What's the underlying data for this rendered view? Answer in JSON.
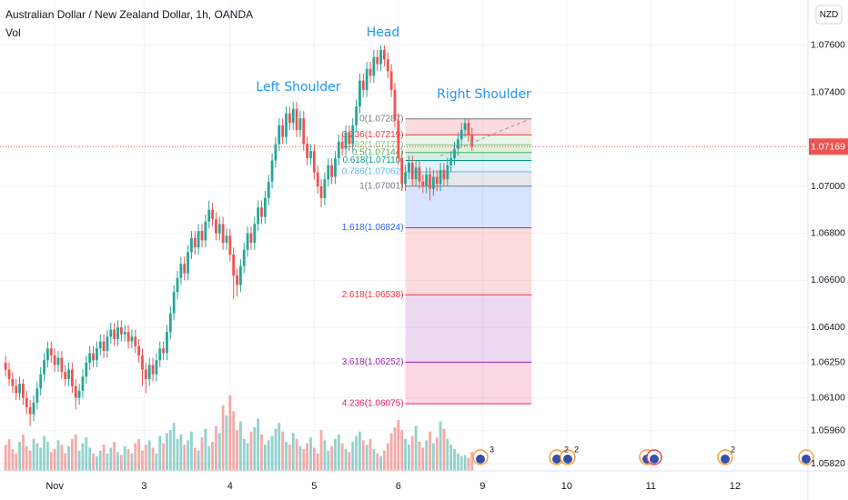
{
  "chart_data": {
    "type": "candlestick",
    "title": "Australian Dollar / New Zealand Dollar, 1h, OANDA",
    "volume_label": "Vol",
    "currency": "NZD",
    "up_color": "#26a69a",
    "down_color": "#ef5350",
    "grid": true,
    "xlim": [
      -15.6,
      214.8
    ],
    "ylim": [
      1.05789,
      1.07793
    ],
    "vlim": [
      0,
      100
    ],
    "xticks": [
      {
        "value": 0,
        "label": "Nov"
      },
      {
        "value": 25.5,
        "label": "3"
      },
      {
        "value": 50,
        "label": "4"
      },
      {
        "value": 74,
        "label": "5"
      },
      {
        "value": 98,
        "label": "6"
      },
      {
        "value": 122,
        "label": "9"
      },
      {
        "value": 146,
        "label": "10"
      },
      {
        "value": 170,
        "label": "11"
      },
      {
        "value": 194,
        "label": "12"
      }
    ],
    "yticks": [
      {
        "value": 1.076,
        "label": "1.07600"
      },
      {
        "value": 1.074,
        "label": "1.07400"
      },
      {
        "value": 1.07,
        "label": "1.07000"
      },
      {
        "value": 1.068,
        "label": "1.06800"
      },
      {
        "value": 1.066,
        "label": "1.06600"
      },
      {
        "value": 1.064,
        "label": "1.06400"
      },
      {
        "value": 1.0625,
        "label": "1.06250"
      },
      {
        "value": 1.061,
        "label": "1.06100"
      },
      {
        "value": 1.0596,
        "label": "1.05960"
      },
      {
        "value": 1.0582,
        "label": "1.05820"
      }
    ],
    "last_price": 1.07169,
    "x": [
      -14,
      -13,
      -12,
      -11,
      -10,
      -9,
      -8,
      -7,
      -6,
      -5,
      -4,
      -3,
      -2,
      -1,
      0,
      1,
      2,
      3,
      4,
      5,
      6,
      7,
      8,
      9,
      10,
      11,
      12,
      13,
      14,
      15,
      16,
      17,
      18,
      19,
      20,
      21,
      22,
      23,
      24,
      25,
      26,
      27,
      28,
      29,
      30,
      31,
      32,
      33,
      34,
      35,
      36,
      37,
      38,
      39,
      40,
      41,
      42,
      43,
      44,
      45,
      46,
      47,
      48,
      49,
      50,
      51,
      52,
      53,
      54,
      55,
      56,
      57,
      58,
      59,
      60,
      61,
      62,
      63,
      64,
      65,
      66,
      67,
      68,
      69,
      70,
      71,
      72,
      73,
      74,
      75,
      76,
      77,
      78,
      79,
      80,
      81,
      82,
      83,
      84,
      85,
      86,
      87,
      88,
      89,
      90,
      91,
      92,
      93,
      94,
      95,
      96,
      97,
      98,
      99,
      100,
      101,
      102,
      103,
      104,
      105,
      106,
      107,
      108,
      109,
      110,
      111,
      112,
      113,
      114,
      115,
      116,
      117,
      118,
      119
    ],
    "ohlc": [
      [
        1.0625,
        1.0628,
        1.0619,
        1.0622
      ],
      [
        1.0622,
        1.0625,
        1.0615,
        1.0618
      ],
      [
        1.0618,
        1.0621,
        1.0612,
        1.0615
      ],
      [
        1.0615,
        1.0618,
        1.0609,
        1.0612
      ],
      [
        1.0612,
        1.0619,
        1.0609,
        1.0616
      ],
      [
        1.0616,
        1.0618,
        1.0607,
        1.061
      ],
      [
        1.061,
        1.0613,
        1.0603,
        1.0606
      ],
      [
        1.0606,
        1.0609,
        1.0598,
        1.0603
      ],
      [
        1.0603,
        1.0611,
        1.06,
        1.0608
      ],
      [
        1.0608,
        1.0617,
        1.0605,
        1.0614
      ],
      [
        1.0614,
        1.0623,
        1.0611,
        1.062
      ],
      [
        1.062,
        1.0629,
        1.0617,
        1.0626
      ],
      [
        1.0626,
        1.0634,
        1.0623,
        1.0631
      ],
      [
        1.0631,
        1.0634,
        1.0625,
        1.0628
      ],
      [
        1.0628,
        1.0631,
        1.0621,
        1.0624
      ],
      [
        1.0624,
        1.063,
        1.0621,
        1.0627
      ],
      [
        1.0627,
        1.063,
        1.0618,
        1.0621
      ],
      [
        1.0621,
        1.0624,
        1.0615,
        1.0618
      ],
      [
        1.0618,
        1.0625,
        1.0615,
        1.0622
      ],
      [
        1.0622,
        1.0625,
        1.0612,
        1.0615
      ],
      [
        1.0615,
        1.0618,
        1.0605,
        1.061
      ],
      [
        1.061,
        1.0616,
        1.0607,
        1.0613
      ],
      [
        1.0613,
        1.0622,
        1.061,
        1.0619
      ],
      [
        1.0619,
        1.0628,
        1.0616,
        1.0625
      ],
      [
        1.0625,
        1.0632,
        1.0622,
        1.0629
      ],
      [
        1.0629,
        1.0632,
        1.0623,
        1.0626
      ],
      [
        1.0626,
        1.0634,
        1.0623,
        1.0631
      ],
      [
        1.0631,
        1.0637,
        1.0628,
        1.0634
      ],
      [
        1.0634,
        1.0637,
        1.0627,
        1.063
      ],
      [
        1.063,
        1.0639,
        1.0627,
        1.0636
      ],
      [
        1.0636,
        1.0642,
        1.0633,
        1.0639
      ],
      [
        1.0639,
        1.0642,
        1.0632,
        1.0635
      ],
      [
        1.0635,
        1.0643,
        1.0632,
        1.064
      ],
      [
        1.064,
        1.0643,
        1.0634,
        1.0637
      ],
      [
        1.0637,
        1.0641,
        1.0634,
        1.0638
      ],
      [
        1.0638,
        1.0641,
        1.0631,
        1.0634
      ],
      [
        1.0634,
        1.0639,
        1.0631,
        1.0636
      ],
      [
        1.0636,
        1.0639,
        1.0629,
        1.0632
      ],
      [
        1.0632,
        1.0635,
        1.0625,
        1.0628
      ],
      [
        1.0628,
        1.0631,
        1.0615,
        1.0622
      ],
      [
        1.0622,
        1.0625,
        1.0612,
        1.0618
      ],
      [
        1.0618,
        1.0627,
        1.0615,
        1.0624
      ],
      [
        1.0624,
        1.0627,
        1.0617,
        1.062
      ],
      [
        1.062,
        1.0629,
        1.0617,
        1.0626
      ],
      [
        1.0626,
        1.0634,
        1.0623,
        1.0631
      ],
      [
        1.0631,
        1.0634,
        1.0626,
        1.0629
      ],
      [
        1.0629,
        1.0641,
        1.0626,
        1.0638
      ],
      [
        1.0638,
        1.0649,
        1.0635,
        1.0646
      ],
      [
        1.0646,
        1.0658,
        1.0643,
        1.0655
      ],
      [
        1.0655,
        1.0664,
        1.0652,
        1.0661
      ],
      [
        1.0661,
        1.067,
        1.0658,
        1.0667
      ],
      [
        1.0667,
        1.067,
        1.066,
        1.0663
      ],
      [
        1.0663,
        1.0675,
        1.066,
        1.0672
      ],
      [
        1.0672,
        1.0681,
        1.0669,
        1.0678
      ],
      [
        1.0678,
        1.0681,
        1.0671,
        1.0674
      ],
      [
        1.0674,
        1.0684,
        1.0671,
        1.0681
      ],
      [
        1.0681,
        1.0684,
        1.0674,
        1.0677
      ],
      [
        1.0677,
        1.0688,
        1.0674,
        1.0685
      ],
      [
        1.0685,
        1.0694,
        1.0682,
        1.069
      ],
      [
        1.069,
        1.0693,
        1.0683,
        1.0686
      ],
      [
        1.0686,
        1.0689,
        1.0677,
        1.068
      ],
      [
        1.068,
        1.0687,
        1.0677,
        1.0684
      ],
      [
        1.0684,
        1.0687,
        1.0673,
        1.0676
      ],
      [
        1.0676,
        1.0682,
        1.0673,
        1.0679
      ],
      [
        1.0679,
        1.0682,
        1.0668,
        1.0671
      ],
      [
        1.0671,
        1.0674,
        1.0652,
        1.0662
      ],
      [
        1.0662,
        1.0665,
        1.0653,
        1.0658
      ],
      [
        1.0658,
        1.0669,
        1.0655,
        1.0666
      ],
      [
        1.0666,
        1.0676,
        1.0663,
        1.0673
      ],
      [
        1.0673,
        1.0683,
        1.067,
        1.068
      ],
      [
        1.068,
        1.0683,
        1.0673,
        1.0676
      ],
      [
        1.0676,
        1.0687,
        1.0673,
        1.0684
      ],
      [
        1.0684,
        1.0694,
        1.0681,
        1.0691
      ],
      [
        1.0691,
        1.0694,
        1.0684,
        1.0687
      ],
      [
        1.0687,
        1.0698,
        1.0684,
        1.0695
      ],
      [
        1.0695,
        1.0705,
        1.0692,
        1.0702
      ],
      [
        1.0702,
        1.0714,
        1.0699,
        1.0711
      ],
      [
        1.0711,
        1.0721,
        1.0708,
        1.0718
      ],
      [
        1.0718,
        1.0729,
        1.0715,
        1.0726
      ],
      [
        1.0726,
        1.0729,
        1.0718,
        1.0721
      ],
      [
        1.0721,
        1.0734,
        1.0718,
        1.0731
      ],
      [
        1.0731,
        1.0734,
        1.0724,
        1.0727
      ],
      [
        1.0727,
        1.0736,
        1.0724,
        1.0733
      ],
      [
        1.0733,
        1.0736,
        1.0721,
        1.0724
      ],
      [
        1.0724,
        1.0732,
        1.0721,
        1.0729
      ],
      [
        1.0729,
        1.0732,
        1.0715,
        1.0718
      ],
      [
        1.0718,
        1.0721,
        1.0709,
        1.0712
      ],
      [
        1.0712,
        1.0718,
        1.0709,
        1.0715
      ],
      [
        1.0715,
        1.0718,
        1.0703,
        1.0706
      ],
      [
        1.0706,
        1.0709,
        1.0697,
        1.07
      ],
      [
        1.07,
        1.0703,
        1.0691,
        1.0695
      ],
      [
        1.0695,
        1.0706,
        1.0692,
        1.0703
      ],
      [
        1.0703,
        1.0712,
        1.07,
        1.0709
      ],
      [
        1.0709,
        1.0712,
        1.0701,
        1.0704
      ],
      [
        1.0704,
        1.0715,
        1.0701,
        1.0712
      ],
      [
        1.0712,
        1.0722,
        1.0709,
        1.0719
      ],
      [
        1.0719,
        1.0722,
        1.0713,
        1.0716
      ],
      [
        1.0716,
        1.0726,
        1.0713,
        1.0723
      ],
      [
        1.0723,
        1.0726,
        1.0715,
        1.0718
      ],
      [
        1.0718,
        1.0729,
        1.0715,
        1.0726
      ],
      [
        1.0726,
        1.0737,
        1.0723,
        1.0734
      ],
      [
        1.0734,
        1.0748,
        1.0731,
        1.0745
      ],
      [
        1.0745,
        1.0748,
        1.0738,
        1.0741
      ],
      [
        1.0741,
        1.0753,
        1.0738,
        1.075
      ],
      [
        1.075,
        1.0753,
        1.0744,
        1.0747
      ],
      [
        1.0747,
        1.0758,
        1.0744,
        1.0755
      ],
      [
        1.0755,
        1.0758,
        1.0749,
        1.0752
      ],
      [
        1.0752,
        1.076,
        1.0749,
        1.0758
      ],
      [
        1.0758,
        1.076,
        1.0751,
        1.0754
      ],
      [
        1.0754,
        1.0757,
        1.0746,
        1.0749
      ],
      [
        1.0749,
        1.0752,
        1.0738,
        1.0741
      ],
      [
        1.0741,
        1.0744,
        1.0725,
        1.0728
      ],
      [
        1.0728,
        1.0731,
        1.0709,
        1.0712
      ],
      [
        1.0712,
        1.0715,
        1.0698,
        1.0701
      ],
      [
        1.0701,
        1.0709,
        1.0698,
        1.0706
      ],
      [
        1.0706,
        1.0713,
        1.0703,
        1.071
      ],
      [
        1.071,
        1.0713,
        1.07,
        1.0703
      ],
      [
        1.0703,
        1.0711,
        1.07,
        1.0708
      ],
      [
        1.0708,
        1.0711,
        1.0699,
        1.0702
      ],
      [
        1.0702,
        1.0705,
        1.0697,
        1.07
      ],
      [
        1.07,
        1.0708,
        1.0697,
        1.0705
      ],
      [
        1.0705,
        1.0708,
        1.0694,
        1.0699
      ],
      [
        1.0699,
        1.0707,
        1.0696,
        1.0704
      ],
      [
        1.0704,
        1.0707,
        1.0698,
        1.0701
      ],
      [
        1.0701,
        1.071,
        1.0698,
        1.0707
      ],
      [
        1.0707,
        1.071,
        1.07,
        1.0703
      ],
      [
        1.0703,
        1.0712,
        1.07,
        1.0709
      ],
      [
        1.0709,
        1.0715,
        1.0706,
        1.0712
      ],
      [
        1.0712,
        1.0719,
        1.0709,
        1.0716
      ],
      [
        1.0716,
        1.0723,
        1.0713,
        1.072
      ],
      [
        1.072,
        1.0727,
        1.0717,
        1.0724
      ],
      [
        1.0724,
        1.0729,
        1.0721,
        1.0727
      ],
      [
        1.0727,
        1.0729,
        1.0719,
        1.0722
      ],
      [
        1.0722,
        1.0725,
        1.0715,
        1.07169
      ]
    ],
    "volume": [
      18,
      22,
      15,
      12,
      20,
      25,
      17,
      14,
      22,
      19,
      16,
      24,
      20,
      13,
      15,
      21,
      18,
      12,
      17,
      22,
      25,
      14,
      19,
      23,
      16,
      12,
      10,
      14,
      18,
      12,
      16,
      20,
      13,
      11,
      17,
      15,
      12,
      19,
      22,
      14,
      18,
      21,
      16,
      12,
      24,
      19,
      26,
      28,
      33,
      22,
      25,
      18,
      21,
      27,
      16,
      14,
      23,
      29,
      17,
      20,
      31,
      26,
      45,
      38,
      52,
      41,
      28,
      34,
      22,
      19,
      27,
      30,
      36,
      25,
      18,
      21,
      24,
      29,
      33,
      27,
      20,
      18,
      26,
      22,
      17,
      15,
      19,
      23,
      16,
      12,
      28,
      21,
      14,
      17,
      22,
      25,
      19,
      15,
      13,
      20,
      24,
      27,
      21,
      18,
      22,
      15,
      12,
      10,
      14,
      19,
      26,
      30,
      35,
      28,
      22,
      18,
      24,
      31,
      20,
      16,
      21,
      27,
      19,
      23,
      34,
      29,
      22,
      18,
      15,
      12,
      10,
      11,
      9,
      13
    ],
    "fib": {
      "x": [
        100,
        136
      ],
      "levels": [
        {
          "label": "0(1.07287)",
          "price": 1.07287,
          "color": "#787b86"
        },
        {
          "label": "0.236(1.07219)",
          "price": 1.07219,
          "color": "#f23645"
        },
        {
          "label": "0.382(1.07177)",
          "price": 1.07177,
          "color": "#81c784"
        },
        {
          "label": "0.5(1.07144)",
          "price": 1.07144,
          "color": "#4caf50"
        },
        {
          "label": "0.618(1.07110)",
          "price": 1.0711,
          "color": "#089981"
        },
        {
          "label": "0.786(1.07062)",
          "price": 1.07062,
          "color": "#64b5f6"
        },
        {
          "label": "1(1.07001)",
          "price": 1.07001,
          "color": "#787b86"
        },
        {
          "label": "1.618(1.06824)",
          "price": 1.06824,
          "color": "#2962ff"
        },
        {
          "label": "2.618(1.06538)",
          "price": 1.06538,
          "color": "#f23645"
        },
        {
          "label": "3.618(1.06252)",
          "price": 1.06252,
          "color": "#9c27b0"
        },
        {
          "label": "4.236(1.06075)",
          "price": 1.06075,
          "color": "#e91e63"
        }
      ]
    },
    "trend_line": {
      "x": [
        110,
        136
      ],
      "y": [
        1.0713,
        1.0729
      ]
    },
    "annotations": [
      "Left Shoulder",
      "Head",
      "Right Shoulder"
    ],
    "events": [
      "3",
      "2",
      "2",
      "2"
    ]
  }
}
